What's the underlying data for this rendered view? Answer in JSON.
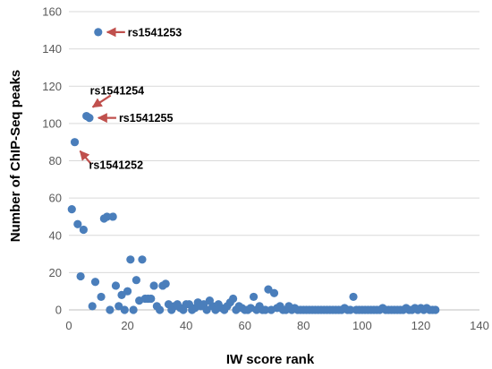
{
  "chart_data": {
    "type": "scatter",
    "xlabel": "IW score rank",
    "ylabel": "Number of ChIP-Seq peaks",
    "xlim": [
      0,
      140
    ],
    "ylim": [
      0,
      160
    ],
    "xticks": [
      0,
      20,
      40,
      60,
      80,
      100,
      120,
      140
    ],
    "yticks": [
      0,
      20,
      40,
      60,
      80,
      100,
      120,
      140,
      160
    ],
    "grid": "horizontal",
    "legend": "none",
    "colors": {
      "point": "#4a7ebb",
      "gridline": "#d9d9d9",
      "axis": "#bfbfbf",
      "arrow": "#c0504d"
    },
    "points": [
      [
        1,
        54
      ],
      [
        2,
        90
      ],
      [
        3,
        46
      ],
      [
        4,
        18
      ],
      [
        5,
        43
      ],
      [
        6,
        104
      ],
      [
        7,
        103
      ],
      [
        8,
        2
      ],
      [
        9,
        15
      ],
      [
        10,
        149
      ],
      [
        11,
        7
      ],
      [
        12,
        49
      ],
      [
        13,
        50
      ],
      [
        14,
        0
      ],
      [
        15,
        50
      ],
      [
        16,
        13
      ],
      [
        17,
        2
      ],
      [
        18,
        8
      ],
      [
        19,
        0
      ],
      [
        20,
        10
      ],
      [
        21,
        27
      ],
      [
        22,
        0
      ],
      [
        23,
        16
      ],
      [
        24,
        5
      ],
      [
        25,
        27
      ],
      [
        26,
        6
      ],
      [
        27,
        6
      ],
      [
        28,
        6
      ],
      [
        29,
        13
      ],
      [
        30,
        2
      ],
      [
        31,
        0
      ],
      [
        32,
        13
      ],
      [
        33,
        14
      ],
      [
        34,
        3
      ],
      [
        35,
        0
      ],
      [
        36,
        2
      ],
      [
        37,
        3
      ],
      [
        38,
        1
      ],
      [
        39,
        0
      ],
      [
        40,
        3
      ],
      [
        41,
        3
      ],
      [
        42,
        0
      ],
      [
        43,
        1
      ],
      [
        44,
        4
      ],
      [
        45,
        2
      ],
      [
        46,
        3
      ],
      [
        47,
        0
      ],
      [
        48,
        5
      ],
      [
        49,
        2
      ],
      [
        50,
        0
      ],
      [
        51,
        3
      ],
      [
        52,
        1
      ],
      [
        53,
        0
      ],
      [
        54,
        2
      ],
      [
        55,
        4
      ],
      [
        56,
        6
      ],
      [
        57,
        0
      ],
      [
        58,
        2
      ],
      [
        59,
        1
      ],
      [
        60,
        0
      ],
      [
        61,
        0
      ],
      [
        62,
        1
      ],
      [
        63,
        7
      ],
      [
        64,
        0
      ],
      [
        65,
        2
      ],
      [
        66,
        0
      ],
      [
        67,
        0
      ],
      [
        68,
        11
      ],
      [
        69,
        0
      ],
      [
        70,
        9
      ],
      [
        71,
        1
      ],
      [
        72,
        2
      ],
      [
        73,
        0
      ],
      [
        74,
        0
      ],
      [
        75,
        2
      ],
      [
        76,
        0
      ],
      [
        77,
        1
      ],
      [
        78,
        0
      ],
      [
        79,
        0
      ],
      [
        80,
        0
      ],
      [
        81,
        0
      ],
      [
        82,
        0
      ],
      [
        83,
        0
      ],
      [
        84,
        0
      ],
      [
        85,
        0
      ],
      [
        86,
        0
      ],
      [
        87,
        0
      ],
      [
        88,
        0
      ],
      [
        89,
        0
      ],
      [
        90,
        0
      ],
      [
        91,
        0
      ],
      [
        92,
        0
      ],
      [
        93,
        0
      ],
      [
        94,
        1
      ],
      [
        95,
        0
      ],
      [
        96,
        0
      ],
      [
        97,
        7
      ],
      [
        98,
        0
      ],
      [
        99,
        0
      ],
      [
        100,
        0
      ],
      [
        101,
        0
      ],
      [
        102,
        0
      ],
      [
        103,
        0
      ],
      [
        104,
        0
      ],
      [
        105,
        0
      ],
      [
        106,
        0
      ],
      [
        107,
        1
      ],
      [
        108,
        0
      ],
      [
        109,
        0
      ],
      [
        110,
        0
      ],
      [
        111,
        0
      ],
      [
        112,
        0
      ],
      [
        113,
        0
      ],
      [
        114,
        0
      ],
      [
        115,
        1
      ],
      [
        116,
        0
      ],
      [
        117,
        0
      ],
      [
        118,
        1
      ],
      [
        119,
        0
      ],
      [
        120,
        1
      ],
      [
        121,
        0
      ],
      [
        122,
        1
      ],
      [
        123,
        0
      ],
      [
        124,
        0
      ],
      [
        125,
        0
      ]
    ],
    "annotations": [
      {
        "text": "rs1541253",
        "point": [
          10,
          149
        ],
        "direction": "right"
      },
      {
        "text": "rs1541254",
        "point": [
          6,
          104
        ],
        "direction": "upper-right"
      },
      {
        "text": "rs1541255",
        "point": [
          7,
          103
        ],
        "direction": "right"
      },
      {
        "text": "rs1541252",
        "point": [
          2,
          90
        ],
        "direction": "lower-right"
      }
    ]
  }
}
